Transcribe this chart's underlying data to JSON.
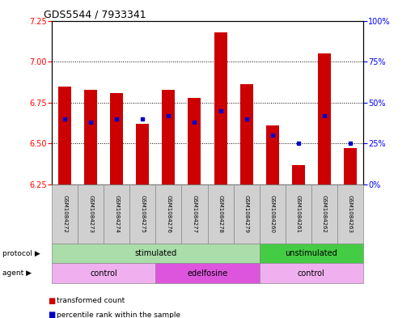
{
  "title": "GDS5544 / 7933341",
  "samples": [
    "GSM1084272",
    "GSM1084273",
    "GSM1084274",
    "GSM1084275",
    "GSM1084276",
    "GSM1084277",
    "GSM1084278",
    "GSM1084279",
    "GSM1084260",
    "GSM1084261",
    "GSM1084262",
    "GSM1084263"
  ],
  "bar_values": [
    6.85,
    6.83,
    6.81,
    6.62,
    6.83,
    6.78,
    7.18,
    6.86,
    6.61,
    6.37,
    7.05,
    6.47
  ],
  "bar_base": 6.25,
  "percentile_pct": [
    40,
    38,
    40,
    40,
    42,
    38,
    45,
    40,
    30,
    25,
    42,
    25
  ],
  "ylim_left": [
    6.25,
    7.25
  ],
  "ylim_right": [
    0,
    100
  ],
  "yticks_left": [
    6.25,
    6.5,
    6.75,
    7.0,
    7.25
  ],
  "yticks_right": [
    0,
    25,
    50,
    75,
    100
  ],
  "ytick_labels_right": [
    "0%",
    "25%",
    "50%",
    "75%",
    "100%"
  ],
  "bar_color": "#cc0000",
  "percentile_color": "#0000cc",
  "bg_color": "#ffffff",
  "protocol_groups": [
    {
      "label": "stimulated",
      "start": 0,
      "end": 8,
      "color": "#aaddaa"
    },
    {
      "label": "unstimulated",
      "start": 8,
      "end": 12,
      "color": "#44cc44"
    }
  ],
  "agent_groups": [
    {
      "label": "control",
      "start": 0,
      "end": 4,
      "color": "#f0b0f0"
    },
    {
      "label": "edelfosine",
      "start": 4,
      "end": 8,
      "color": "#dd55dd"
    },
    {
      "label": "control",
      "start": 8,
      "end": 12,
      "color": "#f0b0f0"
    }
  ],
  "legend_red": "transformed count",
  "legend_blue": "percentile rank within the sample",
  "protocol_label": "protocol",
  "agent_label": "agent",
  "sample_box_color": "#d0d0d0"
}
